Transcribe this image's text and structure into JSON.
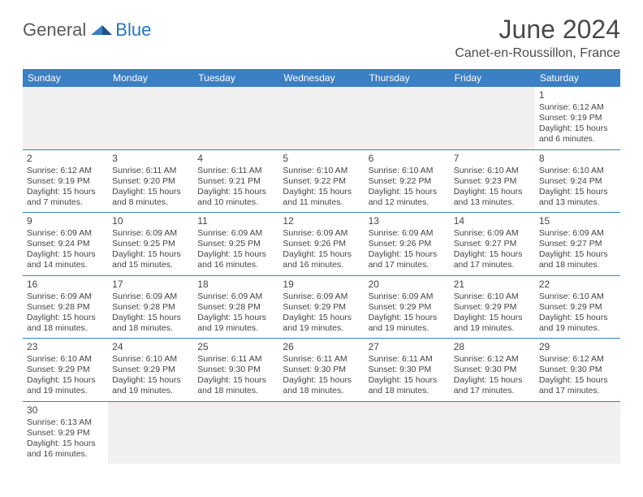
{
  "logo": {
    "general": "General",
    "blue": "Blue"
  },
  "title": "June 2024",
  "location": "Canet-en-Roussillon, France",
  "colors": {
    "header_bg": "#3b7fc4",
    "header_text": "#ffffff",
    "logo_dark": "#5a5a5a",
    "logo_blue": "#2a75bb",
    "text": "#444444",
    "blank_bg": "#f0f0f0"
  },
  "day_headers": [
    "Sunday",
    "Monday",
    "Tuesday",
    "Wednesday",
    "Thursday",
    "Friday",
    "Saturday"
  ],
  "weeks": [
    [
      null,
      null,
      null,
      null,
      null,
      null,
      {
        "d": "1",
        "sr": "Sunrise: 6:12 AM",
        "ss": "Sunset: 9:19 PM",
        "dl1": "Daylight: 15 hours",
        "dl2": "and 6 minutes."
      }
    ],
    [
      {
        "d": "2",
        "sr": "Sunrise: 6:12 AM",
        "ss": "Sunset: 9:19 PM",
        "dl1": "Daylight: 15 hours",
        "dl2": "and 7 minutes."
      },
      {
        "d": "3",
        "sr": "Sunrise: 6:11 AM",
        "ss": "Sunset: 9:20 PM",
        "dl1": "Daylight: 15 hours",
        "dl2": "and 8 minutes."
      },
      {
        "d": "4",
        "sr": "Sunrise: 6:11 AM",
        "ss": "Sunset: 9:21 PM",
        "dl1": "Daylight: 15 hours",
        "dl2": "and 10 minutes."
      },
      {
        "d": "5",
        "sr": "Sunrise: 6:10 AM",
        "ss": "Sunset: 9:22 PM",
        "dl1": "Daylight: 15 hours",
        "dl2": "and 11 minutes."
      },
      {
        "d": "6",
        "sr": "Sunrise: 6:10 AM",
        "ss": "Sunset: 9:22 PM",
        "dl1": "Daylight: 15 hours",
        "dl2": "and 12 minutes."
      },
      {
        "d": "7",
        "sr": "Sunrise: 6:10 AM",
        "ss": "Sunset: 9:23 PM",
        "dl1": "Daylight: 15 hours",
        "dl2": "and 13 minutes."
      },
      {
        "d": "8",
        "sr": "Sunrise: 6:10 AM",
        "ss": "Sunset: 9:24 PM",
        "dl1": "Daylight: 15 hours",
        "dl2": "and 13 minutes."
      }
    ],
    [
      {
        "d": "9",
        "sr": "Sunrise: 6:09 AM",
        "ss": "Sunset: 9:24 PM",
        "dl1": "Daylight: 15 hours",
        "dl2": "and 14 minutes."
      },
      {
        "d": "10",
        "sr": "Sunrise: 6:09 AM",
        "ss": "Sunset: 9:25 PM",
        "dl1": "Daylight: 15 hours",
        "dl2": "and 15 minutes."
      },
      {
        "d": "11",
        "sr": "Sunrise: 6:09 AM",
        "ss": "Sunset: 9:25 PM",
        "dl1": "Daylight: 15 hours",
        "dl2": "and 16 minutes."
      },
      {
        "d": "12",
        "sr": "Sunrise: 6:09 AM",
        "ss": "Sunset: 9:26 PM",
        "dl1": "Daylight: 15 hours",
        "dl2": "and 16 minutes."
      },
      {
        "d": "13",
        "sr": "Sunrise: 6:09 AM",
        "ss": "Sunset: 9:26 PM",
        "dl1": "Daylight: 15 hours",
        "dl2": "and 17 minutes."
      },
      {
        "d": "14",
        "sr": "Sunrise: 6:09 AM",
        "ss": "Sunset: 9:27 PM",
        "dl1": "Daylight: 15 hours",
        "dl2": "and 17 minutes."
      },
      {
        "d": "15",
        "sr": "Sunrise: 6:09 AM",
        "ss": "Sunset: 9:27 PM",
        "dl1": "Daylight: 15 hours",
        "dl2": "and 18 minutes."
      }
    ],
    [
      {
        "d": "16",
        "sr": "Sunrise: 6:09 AM",
        "ss": "Sunset: 9:28 PM",
        "dl1": "Daylight: 15 hours",
        "dl2": "and 18 minutes."
      },
      {
        "d": "17",
        "sr": "Sunrise: 6:09 AM",
        "ss": "Sunset: 9:28 PM",
        "dl1": "Daylight: 15 hours",
        "dl2": "and 18 minutes."
      },
      {
        "d": "18",
        "sr": "Sunrise: 6:09 AM",
        "ss": "Sunset: 9:28 PM",
        "dl1": "Daylight: 15 hours",
        "dl2": "and 19 minutes."
      },
      {
        "d": "19",
        "sr": "Sunrise: 6:09 AM",
        "ss": "Sunset: 9:29 PM",
        "dl1": "Daylight: 15 hours",
        "dl2": "and 19 minutes."
      },
      {
        "d": "20",
        "sr": "Sunrise: 6:09 AM",
        "ss": "Sunset: 9:29 PM",
        "dl1": "Daylight: 15 hours",
        "dl2": "and 19 minutes."
      },
      {
        "d": "21",
        "sr": "Sunrise: 6:10 AM",
        "ss": "Sunset: 9:29 PM",
        "dl1": "Daylight: 15 hours",
        "dl2": "and 19 minutes."
      },
      {
        "d": "22",
        "sr": "Sunrise: 6:10 AM",
        "ss": "Sunset: 9:29 PM",
        "dl1": "Daylight: 15 hours",
        "dl2": "and 19 minutes."
      }
    ],
    [
      {
        "d": "23",
        "sr": "Sunrise: 6:10 AM",
        "ss": "Sunset: 9:29 PM",
        "dl1": "Daylight: 15 hours",
        "dl2": "and 19 minutes."
      },
      {
        "d": "24",
        "sr": "Sunrise: 6:10 AM",
        "ss": "Sunset: 9:29 PM",
        "dl1": "Daylight: 15 hours",
        "dl2": "and 19 minutes."
      },
      {
        "d": "25",
        "sr": "Sunrise: 6:11 AM",
        "ss": "Sunset: 9:30 PM",
        "dl1": "Daylight: 15 hours",
        "dl2": "and 18 minutes."
      },
      {
        "d": "26",
        "sr": "Sunrise: 6:11 AM",
        "ss": "Sunset: 9:30 PM",
        "dl1": "Daylight: 15 hours",
        "dl2": "and 18 minutes."
      },
      {
        "d": "27",
        "sr": "Sunrise: 6:11 AM",
        "ss": "Sunset: 9:30 PM",
        "dl1": "Daylight: 15 hours",
        "dl2": "and 18 minutes."
      },
      {
        "d": "28",
        "sr": "Sunrise: 6:12 AM",
        "ss": "Sunset: 9:30 PM",
        "dl1": "Daylight: 15 hours",
        "dl2": "and 17 minutes."
      },
      {
        "d": "29",
        "sr": "Sunrise: 6:12 AM",
        "ss": "Sunset: 9:30 PM",
        "dl1": "Daylight: 15 hours",
        "dl2": "and 17 minutes."
      }
    ],
    [
      {
        "d": "30",
        "sr": "Sunrise: 6:13 AM",
        "ss": "Sunset: 9:29 PM",
        "dl1": "Daylight: 15 hours",
        "dl2": "and 16 minutes."
      },
      null,
      null,
      null,
      null,
      null,
      null
    ]
  ]
}
